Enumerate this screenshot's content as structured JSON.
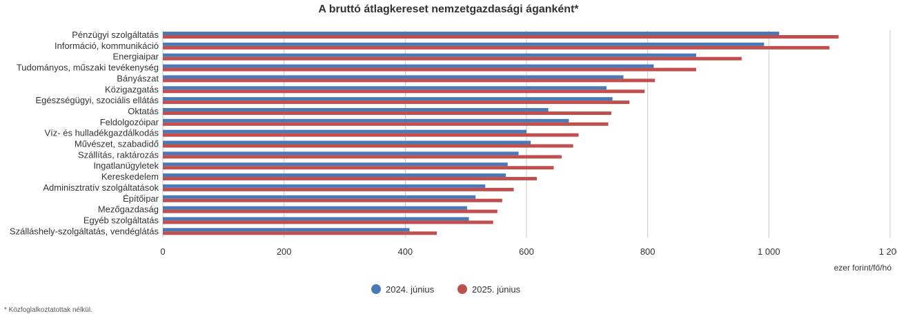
{
  "chart_data": {
    "type": "bar",
    "orientation": "horizontal",
    "title": "A bruttó átlagkereset nemzetgazdasági áganként*",
    "xlabel": "ezer forint/fő/hó",
    "ylabel": "",
    "xlim": [
      0,
      1200
    ],
    "ticks": [
      0,
      200,
      400,
      600,
      800,
      1000,
      1200
    ],
    "tick_labels": [
      "0",
      "200",
      "400",
      "600",
      "800",
      "1 000",
      "1 200"
    ],
    "grid": true,
    "legend_position": "bottom-center",
    "categories": [
      "Pénzügyi szolgáltatás",
      "Információ, kommunikáció",
      "Energiaipar",
      "Tudományos, műszaki tevékenység",
      "Bányászat",
      "Közigazgatás",
      "Egészségügyi, szociális ellátás",
      "Oktatás",
      "Feldolgozóipar",
      "Víz- és hulladékgazdálkodás",
      "Művészet, szabadidő",
      "Szállítás, raktározás",
      "Ingatlanügyletek",
      "Kereskedelem",
      "Adminisztratív szolgáltatások",
      "Építőipar",
      "Mezőgazdaság",
      "Egyéb szolgáltatás",
      "Szálláshely-szolgáltatás, vendéglátás"
    ],
    "series": [
      {
        "name": "2024. június",
        "color": "#4a7ab5",
        "values": [
          1017,
          992,
          880,
          810,
          760,
          732,
          742,
          636,
          670,
          600,
          607,
          587,
          569,
          566,
          532,
          516,
          502,
          505,
          407
        ]
      },
      {
        "name": "2025. június",
        "color": "#c0504d",
        "values": [
          1115,
          1100,
          955,
          880,
          812,
          795,
          770,
          740,
          735,
          686,
          677,
          658,
          645,
          617,
          579,
          560,
          552,
          545,
          452
        ]
      }
    ]
  },
  "footnote": "* Közfoglalkoztatottak nélkül."
}
